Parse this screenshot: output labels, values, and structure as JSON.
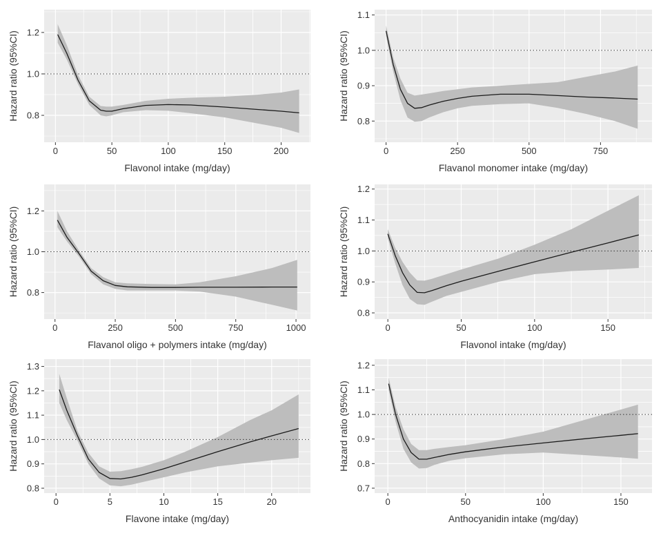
{
  "colors": {
    "panel_background": "#ebebeb",
    "gridline": "#ffffff",
    "ci_band": "#bdbdbd",
    "curve": "#1a1a1a",
    "reference_line": "#333333"
  },
  "chart_data": [
    {
      "type": "line",
      "xlabel": "Flavonol intake (mg/day)",
      "ylabel": "Hazard ratio (95%CI)",
      "xlim": [
        -10,
        226
      ],
      "ylim": [
        0.67,
        1.31
      ],
      "xticks": [
        0,
        50,
        100,
        150,
        200
      ],
      "yticks": [
        0.8,
        1.0,
        1.2
      ],
      "ytick_labels": [
        "0.8",
        "1.0",
        "1.2"
      ],
      "reference_line": 1.0,
      "grid": true,
      "series": [
        {
          "x": [
            2,
            10,
            20,
            30,
            40,
            45,
            50,
            60,
            80,
            100,
            120,
            150,
            180,
            200,
            216
          ],
          "y": [
            1.19,
            1.1,
            0.97,
            0.87,
            0.825,
            0.82,
            0.82,
            0.832,
            0.848,
            0.852,
            0.85,
            0.84,
            0.828,
            0.82,
            0.812
          ],
          "lower": [
            1.15,
            1.07,
            0.95,
            0.85,
            0.8,
            0.795,
            0.8,
            0.815,
            0.825,
            0.822,
            0.81,
            0.79,
            0.76,
            0.74,
            0.715
          ],
          "upper": [
            1.24,
            1.14,
            0.995,
            0.89,
            0.845,
            0.842,
            0.842,
            0.85,
            0.87,
            0.88,
            0.885,
            0.89,
            0.9,
            0.91,
            0.925
          ]
        }
      ]
    },
    {
      "type": "line",
      "xlabel": "Flavanol monomer intake (mg/day)",
      "ylabel": "Hazard ratio (95%CI)",
      "xlim": [
        -40,
        930
      ],
      "ylim": [
        0.74,
        1.115
      ],
      "xticks": [
        0,
        250,
        500,
        750
      ],
      "yticks": [
        0.8,
        0.9,
        1.0,
        1.1
      ],
      "ytick_labels": [
        "0.8",
        "0.9",
        "1.0",
        "1.1"
      ],
      "reference_line": 1.0,
      "grid": true,
      "series": [
        {
          "x": [
            0,
            25,
            50,
            75,
            100,
            125,
            150,
            200,
            250,
            300,
            400,
            500,
            600,
            700,
            800,
            880
          ],
          "y": [
            1.055,
            0.96,
            0.89,
            0.85,
            0.836,
            0.838,
            0.845,
            0.856,
            0.864,
            0.87,
            0.876,
            0.876,
            0.872,
            0.868,
            0.865,
            0.862
          ],
          "lower": [
            1.04,
            0.94,
            0.86,
            0.81,
            0.798,
            0.8,
            0.81,
            0.825,
            0.836,
            0.843,
            0.848,
            0.85,
            0.837,
            0.82,
            0.8,
            0.778
          ],
          "upper": [
            1.07,
            0.98,
            0.92,
            0.88,
            0.872,
            0.875,
            0.878,
            0.885,
            0.89,
            0.895,
            0.9,
            0.905,
            0.91,
            0.925,
            0.94,
            0.957
          ]
        }
      ]
    },
    {
      "type": "line",
      "xlabel": "Flavanol oligo + polymers intake (mg/day)",
      "ylabel": "Hazard ratio (95%CI)",
      "xlim": [
        -45,
        1060
      ],
      "ylim": [
        0.67,
        1.33
      ],
      "xticks": [
        0,
        250,
        500,
        750,
        1000
      ],
      "yticks": [
        0.8,
        1.0,
        1.2
      ],
      "ytick_labels": [
        "0.8",
        "1.0",
        "1.2"
      ],
      "reference_line": 1.0,
      "grid": true,
      "series": [
        {
          "x": [
            10,
            50,
            100,
            150,
            200,
            250,
            300,
            400,
            500,
            600,
            750,
            900,
            1005
          ],
          "y": [
            1.155,
            1.07,
            0.99,
            0.905,
            0.858,
            0.835,
            0.828,
            0.825,
            0.825,
            0.826,
            0.826,
            0.827,
            0.827
          ],
          "lower": [
            1.12,
            1.05,
            0.975,
            0.89,
            0.84,
            0.818,
            0.81,
            0.81,
            0.81,
            0.805,
            0.78,
            0.74,
            0.712
          ],
          "upper": [
            1.2,
            1.1,
            1.005,
            0.92,
            0.875,
            0.85,
            0.845,
            0.842,
            0.84,
            0.85,
            0.88,
            0.92,
            0.96
          ]
        }
      ]
    },
    {
      "type": "line",
      "xlabel": "Flavonol intake (mg/day)",
      "ylabel": "Hazard ratio (95%CI)",
      "xlim": [
        -9,
        180
      ],
      "ylim": [
        0.78,
        1.215
      ],
      "xticks": [
        0,
        50,
        100,
        150
      ],
      "yticks": [
        0.8,
        0.9,
        1.0,
        1.1,
        1.2
      ],
      "ytick_labels": [
        "0.8",
        "0.9",
        "1.0",
        "1.1",
        "1.2"
      ],
      "reference_line": 1.0,
      "grid": true,
      "series": [
        {
          "x": [
            0,
            5,
            10,
            15,
            20,
            25,
            30,
            40,
            50,
            75,
            100,
            125,
            150,
            171
          ],
          "y": [
            1.055,
            0.985,
            0.93,
            0.89,
            0.866,
            0.865,
            0.872,
            0.888,
            0.902,
            0.934,
            0.965,
            0.996,
            1.026,
            1.052
          ],
          "lower": [
            1.04,
            0.96,
            0.89,
            0.845,
            0.828,
            0.826,
            0.836,
            0.855,
            0.868,
            0.9,
            0.925,
            0.935,
            0.94,
            0.945
          ],
          "upper": [
            1.07,
            1.01,
            0.965,
            0.93,
            0.905,
            0.904,
            0.91,
            0.925,
            0.94,
            0.975,
            1.02,
            1.07,
            1.13,
            1.18
          ]
        }
      ]
    },
    {
      "type": "line",
      "xlabel": "Flavone intake (mg/day)",
      "ylabel": "Hazard ratio (95%CI)",
      "xlim": [
        -1.1,
        23.6
      ],
      "ylim": [
        0.78,
        1.33
      ],
      "xticks": [
        0,
        5,
        10,
        15,
        20
      ],
      "yticks": [
        0.8,
        0.9,
        1.0,
        1.1,
        1.2,
        1.3
      ],
      "ytick_labels": [
        "0.8",
        "0.9",
        "1.0",
        "1.1",
        "1.2",
        "1.3"
      ],
      "reference_line": 1.0,
      "grid": true,
      "series": [
        {
          "x": [
            0.3,
            1,
            2,
            3,
            4,
            5,
            6,
            7,
            8,
            10,
            12,
            15,
            18,
            20,
            22.5
          ],
          "y": [
            1.205,
            1.12,
            1.015,
            0.92,
            0.865,
            0.84,
            0.838,
            0.845,
            0.855,
            0.88,
            0.908,
            0.95,
            0.99,
            1.015,
            1.045
          ],
          "lower": [
            1.15,
            1.08,
            0.995,
            0.9,
            0.84,
            0.812,
            0.808,
            0.815,
            0.825,
            0.845,
            0.865,
            0.89,
            0.905,
            0.915,
            0.925
          ],
          "upper": [
            1.27,
            1.17,
            1.035,
            0.945,
            0.89,
            0.868,
            0.87,
            0.878,
            0.888,
            0.915,
            0.95,
            1.01,
            1.08,
            1.12,
            1.185
          ]
        }
      ]
    },
    {
      "type": "line",
      "xlabel": "Anthocyanidin intake (mg/day)",
      "ylabel": "Hazard ratio (95%CI)",
      "xlim": [
        -8.5,
        170
      ],
      "ylim": [
        0.68,
        1.225
      ],
      "xticks": [
        0,
        50,
        100,
        150
      ],
      "yticks": [
        0.7,
        0.8,
        0.9,
        1.0,
        1.1,
        1.2
      ],
      "ytick_labels": [
        "0.7",
        "0.8",
        "0.9",
        "1.0",
        "1.1",
        "1.2"
      ],
      "reference_line": 1.0,
      "grid": true,
      "series": [
        {
          "x": [
            0.5,
            5,
            10,
            15,
            20,
            25,
            30,
            40,
            50,
            75,
            100,
            125,
            150,
            161
          ],
          "y": [
            1.125,
            1.0,
            0.9,
            0.845,
            0.818,
            0.818,
            0.825,
            0.838,
            0.848,
            0.868,
            0.884,
            0.9,
            0.915,
            0.922
          ],
          "lower": [
            1.1,
            0.97,
            0.86,
            0.805,
            0.78,
            0.782,
            0.795,
            0.812,
            0.822,
            0.838,
            0.845,
            0.835,
            0.825,
            0.82
          ],
          "upper": [
            1.15,
            1.03,
            0.94,
            0.88,
            0.855,
            0.855,
            0.86,
            0.868,
            0.875,
            0.9,
            0.93,
            0.975,
            1.02,
            1.04
          ]
        }
      ]
    }
  ]
}
